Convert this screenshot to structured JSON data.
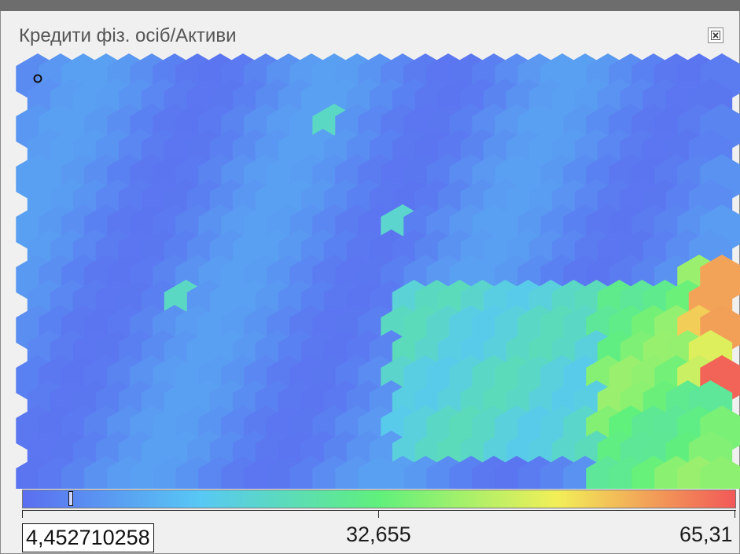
{
  "window": {
    "title": "Кредити фіз. осіб/Активи",
    "close_icon": "close-icon"
  },
  "chart_data": {
    "type": "heatmap",
    "layout": "hexagonal",
    "title": "Кредити фіз. осіб/Активи",
    "rows": 17,
    "cols": 32,
    "color_scale": {
      "min": "4,452710258",
      "mid": "32,655",
      "max": "65,31",
      "min_value": 4.452710258,
      "mid_value": 32.655,
      "max_value": 65.31,
      "colors": [
        "#5b6ef0",
        "#58c8f4",
        "#60f07c",
        "#f2ef58",
        "#f25858"
      ]
    },
    "current_value": "4,452710258",
    "current_value_number": 4.452710258,
    "legend_labels": [
      "4,452710258",
      "32,655",
      "65,31"
    ]
  }
}
